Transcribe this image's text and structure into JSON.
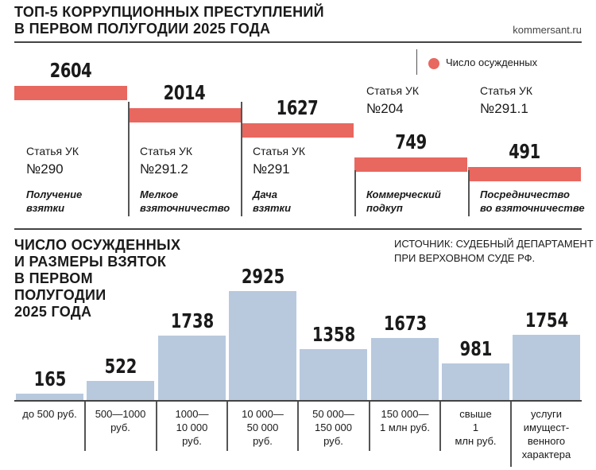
{
  "header": {
    "title_line1": "ТОП-5 КОРРУПЦИОННЫХ ПРЕСТУПЛЕНИЙ",
    "title_line2": "В ПЕРВОМ ПОЛУГОДИИ 2025 ГОДА",
    "brand": "kommersant.ru"
  },
  "legend": {
    "label": "Число осужденных",
    "color": "#e8675f"
  },
  "crimes": [
    {
      "value": "2604",
      "article_label": "Статья УК",
      "article_number": "№290",
      "name_line1": "Получение",
      "name_line2": "взятки"
    },
    {
      "value": "2014",
      "article_label": "Статья УК",
      "article_number": "№291.2",
      "name_line1": "Мелкое",
      "name_line2": "взяточничество"
    },
    {
      "value": "1627",
      "article_label": "Статья УК",
      "article_number": "№291",
      "name_line1": "Дача",
      "name_line2": "взятки"
    },
    {
      "value": "749",
      "article_label": "Статья УК",
      "article_number": "№204",
      "name_line1": "Коммерческий",
      "name_line2": "подкуп"
    },
    {
      "value": "491",
      "article_label": "Статья УК",
      "article_number": "№291.1",
      "name_line1": "Посредничество",
      "name_line2": "во взяточничестве"
    }
  ],
  "section2": {
    "title_lines": [
      "ЧИСЛО ОСУЖДЕННЫХ",
      "И РАЗМЕРЫ ВЗЯТОК",
      "В ПЕРВОМ",
      "ПОЛУГОДИИ",
      "2025 ГОДА"
    ],
    "source_line1": "ИСТОЧНИК: СУДЕБНЫЙ ДЕПАРТАМЕНТ",
    "source_line2": "ПРИ ВЕРХОВНОМ СУДЕ РФ.",
    "bar_color": "#b8c9de"
  },
  "bribes": [
    {
      "value": "165",
      "label_lines": [
        "до 500 руб."
      ]
    },
    {
      "value": "522",
      "label_lines": [
        "500—1000",
        "руб."
      ]
    },
    {
      "value": "1738",
      "label_lines": [
        "1000—",
        "10 000",
        "руб."
      ]
    },
    {
      "value": "2925",
      "label_lines": [
        "10 000—",
        "50 000",
        "руб."
      ]
    },
    {
      "value": "1358",
      "label_lines": [
        "50 000—",
        "150 000",
        "руб."
      ]
    },
    {
      "value": "1673",
      "label_lines": [
        "150 000—",
        "1 млн руб."
      ]
    },
    {
      "value": "981",
      "label_lines": [
        "свыше",
        "1",
        "млн руб."
      ]
    },
    {
      "value": "1754",
      "label_lines": [
        "услуги",
        "имущест-",
        "венного",
        "характера"
      ]
    }
  ],
  "chart_data": [
    {
      "type": "bar",
      "title": "ТОП-5 КОРРУПЦИОННЫХ ПРЕСТУПЛЕНИЙ В ПЕРВОМ ПОЛУГОДИИ 2025 ГОДА",
      "categories": [
        "Получение взятки",
        "Мелкое взяточничество",
        "Дача взятки",
        "Коммерческий подкуп",
        "Посредничество во взяточничестве"
      ],
      "series": [
        {
          "name": "Число осужденных",
          "values": [
            2604,
            2014,
            1627,
            749,
            491
          ]
        }
      ]
    },
    {
      "type": "bar",
      "title": "ЧИСЛО ОСУЖДЕННЫХ И РАЗМЕРЫ ВЗЯТОК В ПЕРВОМ ПОЛУГОДИИ 2025 ГОДА",
      "categories": [
        "до 500 руб.",
        "500—1000 руб.",
        "1000—10 000 руб.",
        "10 000—50 000 руб.",
        "50 000—150 000 руб.",
        "150 000—1 млн руб.",
        "свыше 1 млн руб.",
        "услуги имущественного характера"
      ],
      "values": [
        165,
        522,
        1738,
        2925,
        1358,
        1673,
        981,
        1754
      ]
    }
  ]
}
